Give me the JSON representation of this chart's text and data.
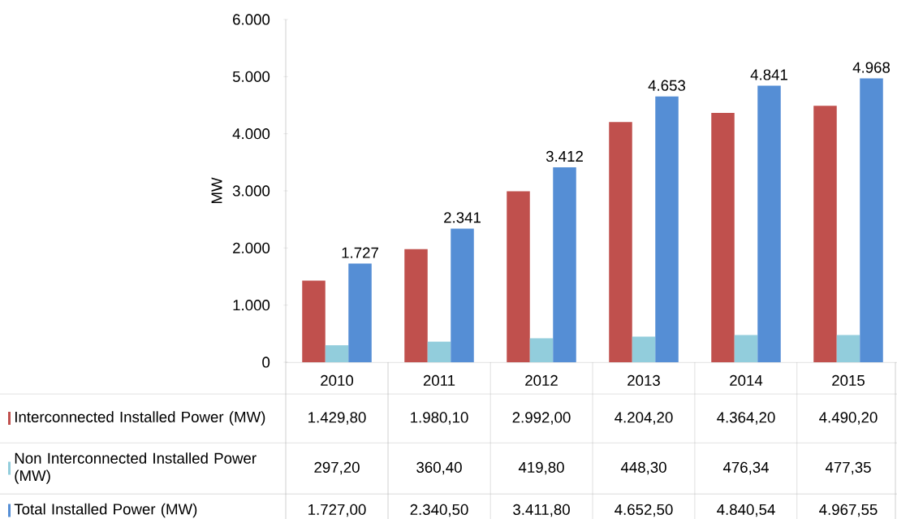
{
  "chart_data": {
    "type": "bar",
    "ylabel": "MW",
    "categories": [
      "2010",
      "2011",
      "2012",
      "2013",
      "2014",
      "2015"
    ],
    "series": [
      {
        "name": "Interconnected Installed Power (MW)",
        "color": "#c0504d",
        "values": [
          1429.8,
          1980.1,
          2992.0,
          4204.2,
          4364.2,
          4490.2
        ],
        "value_labels": [
          "1.429,80",
          "1.980,10",
          "2.992,00",
          "4.204,20",
          "4.364,20",
          "4.490,20"
        ]
      },
      {
        "name": "Non Interconnected Installed Power (MW)",
        "color": "#92cddc",
        "values": [
          297.2,
          360.4,
          419.8,
          448.3,
          476.34,
          477.35
        ],
        "value_labels": [
          "297,20",
          "360,40",
          "419,80",
          "448,30",
          "476,34",
          "477,35"
        ]
      },
      {
        "name": "Total Installed Power (MW)",
        "color": "#558ed5",
        "values": [
          1727.0,
          2340.5,
          3411.8,
          4652.5,
          4840.54,
          4967.55
        ],
        "value_labels": [
          "1.727,00",
          "2.340,50",
          "3.411,80",
          "4.652,50",
          "4.840,54",
          "4.967,55"
        ]
      }
    ],
    "annotations": [
      "1.727",
      "2.341",
      "3.412",
      "4.653",
      "4.841",
      "4.968"
    ],
    "ylim": [
      0,
      6000
    ],
    "yticks": [
      {
        "value": 0,
        "label": "0"
      },
      {
        "value": 1000,
        "label": "1.000"
      },
      {
        "value": 2000,
        "label": "2.000"
      },
      {
        "value": 3000,
        "label": "3.000"
      },
      {
        "value": 4000,
        "label": "4.000"
      },
      {
        "value": 5000,
        "label": "5.000"
      },
      {
        "value": 6000,
        "label": "6.000"
      }
    ],
    "legend": "bottom",
    "grid": false
  }
}
